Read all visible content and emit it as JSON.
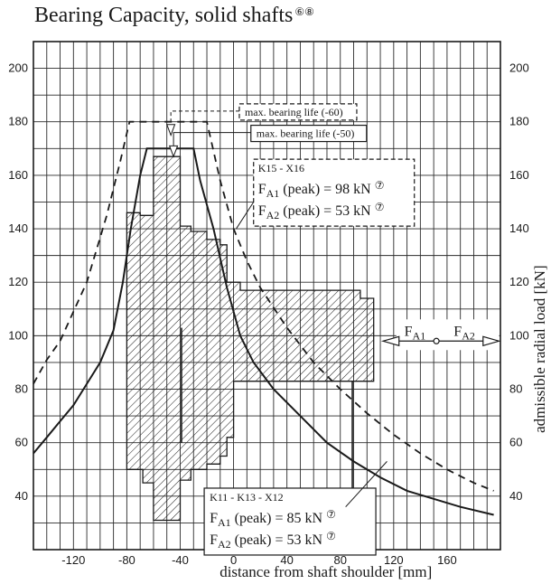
{
  "title": "Bearing Capacity, solid shafts",
  "title_notes": "⑥⑧",
  "chart_data": {
    "type": "line",
    "title": "Bearing Capacity, solid shafts",
    "xlabel": "distance from shaft shoulder [mm]",
    "ylabel": "admissible radial load [kN]",
    "xlim": [
      -150,
      200
    ],
    "ylim": [
      20,
      210
    ],
    "xticks": [
      -120,
      -80,
      -40,
      0,
      40,
      80,
      120,
      160
    ],
    "yticks": [
      40,
      60,
      80,
      100,
      120,
      140,
      160,
      180,
      200
    ],
    "grid": true,
    "series": [
      {
        "style": "dashed",
        "points": [
          [
            -150,
            82
          ],
          [
            -140,
            91
          ],
          [
            -130,
            98
          ],
          [
            -110,
            120
          ],
          [
            -95,
            145
          ],
          [
            -85,
            165
          ],
          [
            -78,
            180
          ],
          [
            -20,
            180
          ],
          [
            -10,
            158
          ],
          [
            0,
            140
          ],
          [
            10,
            128
          ],
          [
            20,
            118
          ],
          [
            40,
            103
          ],
          [
            60,
            90
          ],
          [
            80,
            80
          ],
          [
            100,
            71
          ],
          [
            120,
            63
          ],
          [
            140,
            56
          ],
          [
            160,
            50
          ],
          [
            180,
            45
          ],
          [
            195,
            42
          ]
        ]
      },
      {
        "style": "solid",
        "points": [
          [
            -150,
            56
          ],
          [
            -140,
            62
          ],
          [
            -130,
            68
          ],
          [
            -120,
            74
          ],
          [
            -110,
            82
          ],
          [
            -100,
            90
          ],
          [
            -90,
            102
          ],
          [
            -83,
            120
          ],
          [
            -77,
            140
          ],
          [
            -70,
            160
          ],
          [
            -65,
            170
          ],
          [
            -30,
            170
          ],
          [
            -25,
            158
          ],
          [
            -15,
            140
          ],
          [
            -5,
            118
          ],
          [
            5,
            100
          ],
          [
            15,
            90
          ],
          [
            30,
            80
          ],
          [
            50,
            70
          ],
          [
            70,
            60
          ],
          [
            90,
            53
          ],
          [
            110,
            47
          ],
          [
            130,
            42
          ],
          [
            150,
            39
          ],
          [
            170,
            36
          ],
          [
            195,
            33
          ]
        ]
      }
    ],
    "hatched_region": {
      "note": "permissible region",
      "points": [
        [
          -80,
          146
        ],
        [
          -70,
          146
        ],
        [
          -70,
          145
        ],
        [
          -60,
          145
        ],
        [
          -60,
          167
        ],
        [
          -40,
          167
        ],
        [
          -40,
          141
        ],
        [
          -32,
          141
        ],
        [
          -32,
          139
        ],
        [
          -20,
          139
        ],
        [
          -20,
          136
        ],
        [
          -10,
          136
        ],
        [
          -10,
          134
        ],
        [
          -5,
          134
        ],
        [
          -5,
          120
        ],
        [
          5,
          120
        ],
        [
          5,
          117
        ],
        [
          95,
          117
        ],
        [
          95,
          114
        ],
        [
          105,
          114
        ],
        [
          105,
          83
        ],
        [
          0,
          83
        ],
        [
          0,
          62
        ],
        [
          -5,
          62
        ],
        [
          -5,
          55
        ],
        [
          -10,
          55
        ],
        [
          -10,
          52
        ],
        [
          -20,
          52
        ],
        [
          -20,
          50
        ],
        [
          -32,
          50
        ],
        [
          -32,
          46
        ],
        [
          -40,
          46
        ],
        [
          -40,
          31
        ],
        [
          -60,
          31
        ],
        [
          -60,
          45
        ],
        [
          -68,
          45
        ],
        [
          -68,
          50
        ],
        [
          -80,
          50
        ]
      ]
    },
    "vertical_marks": [
      -39,
      89
    ],
    "annotations": {
      "life60": "max. bearing life (-60)",
      "life50": "max. bearing life (-50)",
      "upper_box": {
        "title": "K15 - X16",
        "line1": {
          "sym": "F",
          "sub": "A1",
          "text": " (peak) = 98 kN",
          "note": "⑦"
        },
        "line2": {
          "sym": "F",
          "sub": "A2",
          "text": " (peak) = 53 kN",
          "note": "⑦"
        }
      },
      "lower_box": {
        "title": "K11 - K13 - X12",
        "line1": {
          "sym": "F",
          "sub": "A1",
          "text": " (peak) = 85 kN",
          "note": "⑦"
        },
        "line2": {
          "sym": "F",
          "sub": "A2",
          "text": " (peak) = 53 kN",
          "note": "⑦"
        }
      },
      "axial_force": {
        "left": {
          "sym": "F",
          "sub": "A1"
        },
        "right": {
          "sym": "F",
          "sub": "A2"
        }
      }
    }
  },
  "colors": {
    "line": "#1a1a1a",
    "grid": "#2b2b2b",
    "background": "#ffffff"
  }
}
